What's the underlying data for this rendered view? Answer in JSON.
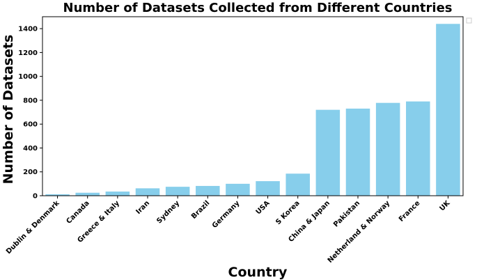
{
  "chart_data": {
    "type": "bar",
    "title": "Number of Datasets Collected from Different Countries",
    "xlabel": "Country",
    "ylabel": "Number of Datasets",
    "categories": [
      "Dublin & Denmark",
      "Canada",
      "Greece & Italy",
      "Iran",
      "Sydney",
      "Brazil",
      "Germany",
      "USA",
      "S Korea",
      "China & Japan",
      "Pakistan",
      "Netherland & Norway",
      "France",
      "UK"
    ],
    "values": [
      12,
      25,
      35,
      62,
      75,
      82,
      100,
      122,
      185,
      720,
      730,
      778,
      790,
      1440
    ],
    "ylim": [
      0,
      1500
    ],
    "yticks": [
      0,
      200,
      400,
      600,
      800,
      1000,
      1200,
      1400
    ],
    "bar_color": "#87ceeb",
    "grid": false,
    "legend": "top-right (empty)"
  }
}
